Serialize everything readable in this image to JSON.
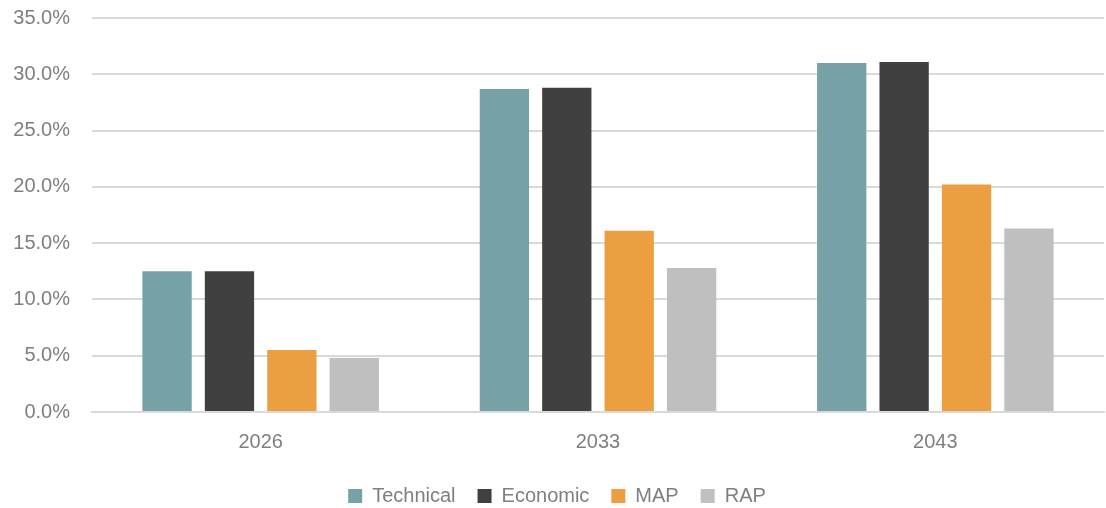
{
  "chart_data": {
    "type": "bar",
    "categories": [
      "2026",
      "2033",
      "2043"
    ],
    "series": [
      {
        "name": "Technical",
        "color": "#76a2a7",
        "values": [
          12.5,
          28.7,
          31.0
        ]
      },
      {
        "name": "Economic",
        "color": "#404040",
        "values": [
          12.5,
          28.8,
          31.1
        ]
      },
      {
        "name": "MAP",
        "color": "#eb9f40",
        "values": [
          5.5,
          16.1,
          20.2
        ]
      },
      {
        "name": "RAP",
        "color": "#bfbfbf",
        "values": [
          4.8,
          12.8,
          16.3
        ]
      }
    ],
    "ylim": [
      0,
      35
    ],
    "yticks": [
      {
        "value": 0,
        "label": "0.0%"
      },
      {
        "value": 5,
        "label": "5.0%"
      },
      {
        "value": 10,
        "label": "10.0%"
      },
      {
        "value": 15,
        "label": "15.0%"
      },
      {
        "value": 20,
        "label": "20.0%"
      },
      {
        "value": 25,
        "label": "25.0%"
      },
      {
        "value": 30,
        "label": "30.0%"
      },
      {
        "value": 35,
        "label": "35.0%"
      }
    ],
    "grid": "y",
    "legend": "bottom"
  }
}
